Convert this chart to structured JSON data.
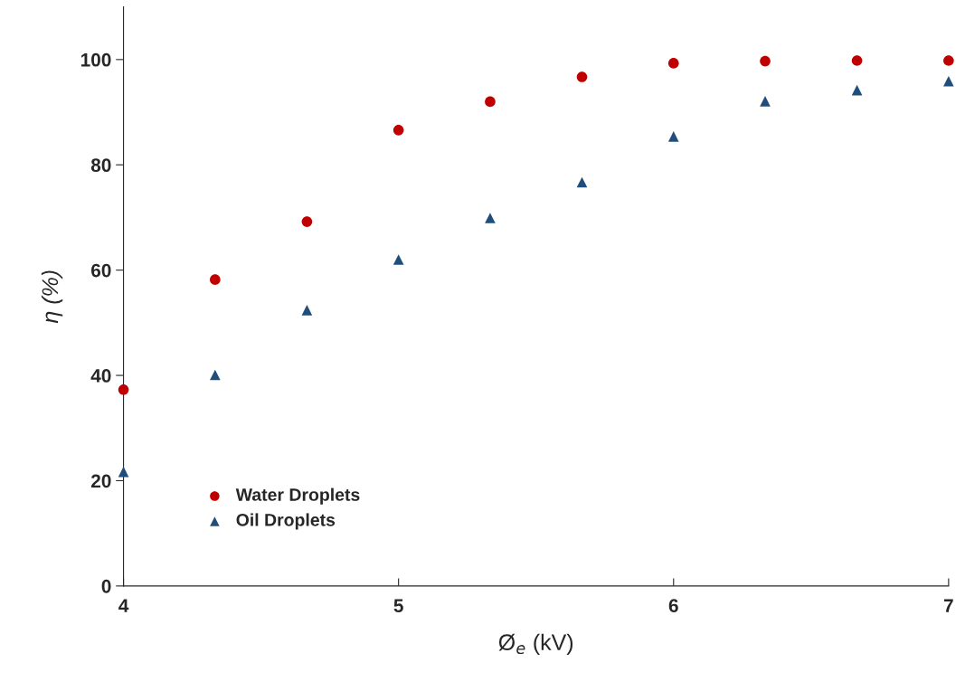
{
  "chart_data": {
    "type": "scatter",
    "xlabel": "Ø$_{e}$ (kV)",
    "ylabel": "η (%)",
    "x": [
      4,
      4.333,
      4.667,
      5,
      5.333,
      5.667,
      6,
      6.333,
      6.667,
      7
    ],
    "series": [
      {
        "name": "Water Droplets",
        "color": "#c00000",
        "marker": "circle",
        "values": [
          37.3,
          58.2,
          69.2,
          86.6,
          92.0,
          96.7,
          99.3,
          99.7,
          99.8,
          99.8
        ]
      },
      {
        "name": "Oil Droplets",
        "color": "#1f4e7a",
        "marker": "triangle",
        "values": [
          21.7,
          40.1,
          52.4,
          62.0,
          69.9,
          76.7,
          85.4,
          92.1,
          94.2,
          95.9
        ]
      }
    ],
    "xlim": [
      4,
      7
    ],
    "xticks": [
      4,
      5,
      6,
      7
    ],
    "ylim": [
      0,
      110
    ],
    "yticks": [
      0,
      20,
      40,
      60,
      80,
      100
    ],
    "grid": false,
    "legend": "bottom left"
  }
}
